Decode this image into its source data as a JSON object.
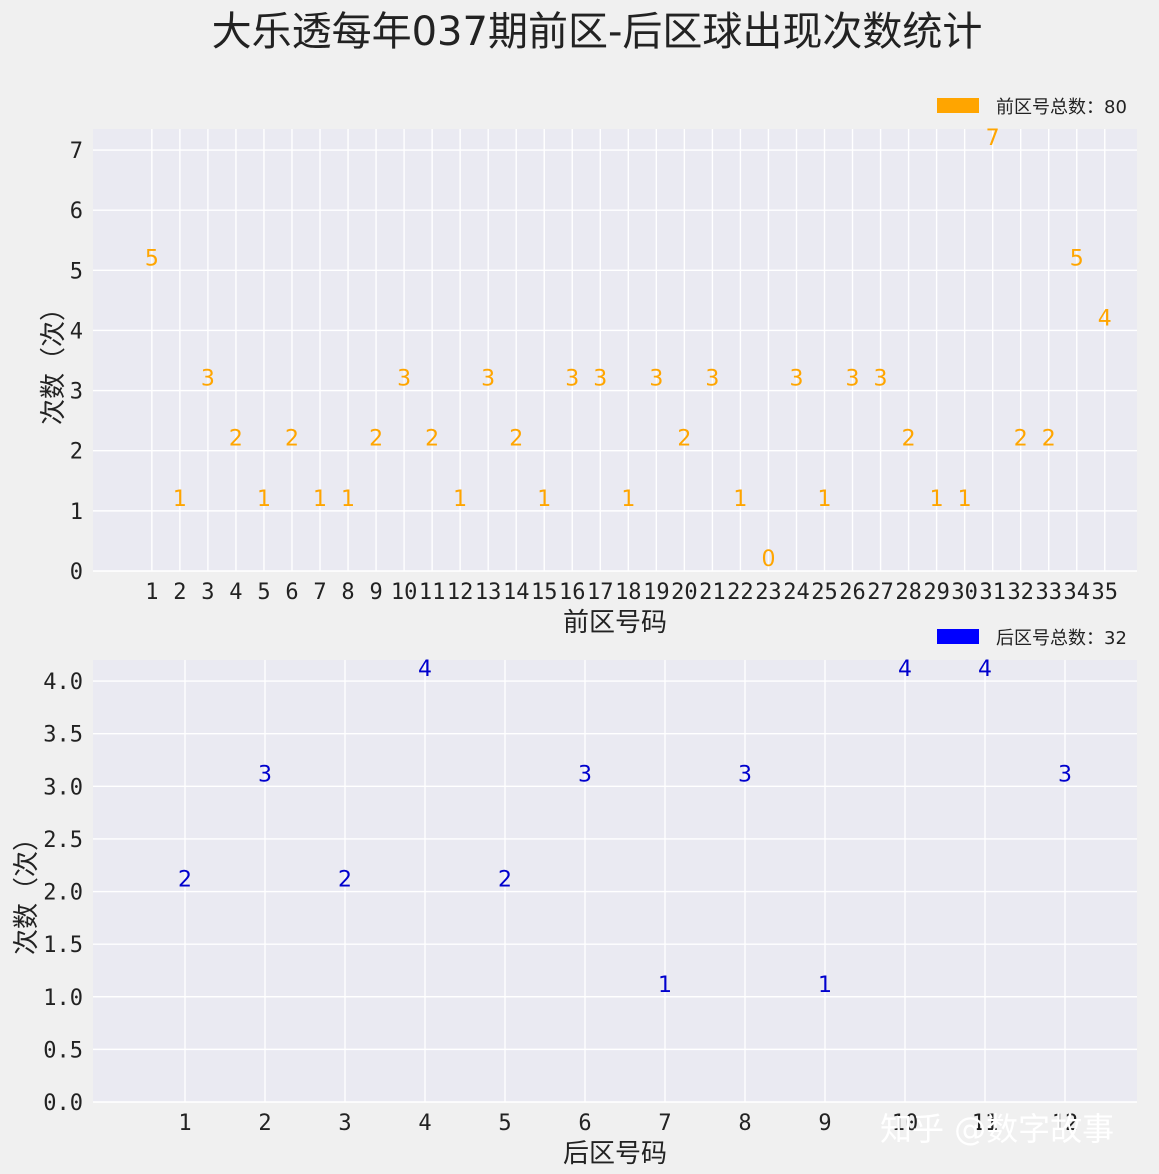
{
  "figure_title": "大乐透每年037期前区-后区球出现次数统计",
  "watermark": "知乎 @数字故事",
  "colors": {
    "background": "#f0f0f0",
    "plot_bg": "#eaeaf2",
    "grid": "#ffffff",
    "front": "#ffa500",
    "back": "#0000ff",
    "back_label": "#0000cd"
  },
  "chart_data": [
    {
      "type": "bar",
      "xlabel": "前区号码",
      "ylabel": "次数（次）",
      "legend_label": "前区号总数：80",
      "legend_position": "upper-right",
      "grid": true,
      "ylim": [
        0,
        7.35
      ],
      "yticks": [
        0,
        1,
        2,
        3,
        4,
        5,
        6,
        7
      ],
      "ytick_labels": [
        "0",
        "1",
        "2",
        "3",
        "4",
        "5",
        "6",
        "7"
      ],
      "categories": [
        "1",
        "2",
        "3",
        "4",
        "5",
        "6",
        "7",
        "8",
        "9",
        "10",
        "11",
        "12",
        "13",
        "14",
        "15",
        "16",
        "17",
        "18",
        "19",
        "20",
        "21",
        "22",
        "23",
        "24",
        "25",
        "26",
        "27",
        "28",
        "29",
        "30",
        "31",
        "32",
        "33",
        "34",
        "35"
      ],
      "values": [
        5,
        1,
        3,
        2,
        1,
        2,
        1,
        1,
        2,
        3,
        2,
        1,
        3,
        2,
        1,
        3,
        3,
        1,
        3,
        2,
        3,
        1,
        0,
        3,
        1,
        3,
        3,
        2,
        1,
        1,
        7,
        2,
        2,
        5,
        4
      ],
      "data_labels": [
        "5",
        "1",
        "3",
        "2",
        "1",
        "2",
        "1",
        "1",
        "2",
        "3",
        "2",
        "1",
        "3",
        "2",
        "1",
        "3",
        "3",
        "1",
        "3",
        "2",
        "3",
        "1",
        "0",
        "3",
        "1",
        "3",
        "3",
        "2",
        "1",
        "1",
        "7",
        "2",
        "2",
        "5",
        "4"
      ]
    },
    {
      "type": "bar",
      "xlabel": "后区号码",
      "ylabel": "次数（次）",
      "legend_label": "后区号总数：32",
      "legend_position": "upper-right",
      "grid": true,
      "ylim": [
        0,
        4.2
      ],
      "yticks": [
        0,
        0.5,
        1,
        1.5,
        2,
        2.5,
        3,
        3.5,
        4
      ],
      "ytick_labels": [
        "0.0",
        "0.5",
        "1.0",
        "1.5",
        "2.0",
        "2.5",
        "3.0",
        "3.5",
        "4.0"
      ],
      "categories": [
        "1",
        "2",
        "3",
        "4",
        "5",
        "6",
        "7",
        "8",
        "9",
        "10",
        "11",
        "12"
      ],
      "values": [
        2,
        3,
        2,
        4,
        2,
        3,
        1,
        3,
        1,
        4,
        4,
        3
      ],
      "data_labels": [
        "2",
        "3",
        "2",
        "4",
        "2",
        "3",
        "1",
        "3",
        "1",
        "4",
        "4",
        "3"
      ]
    }
  ]
}
